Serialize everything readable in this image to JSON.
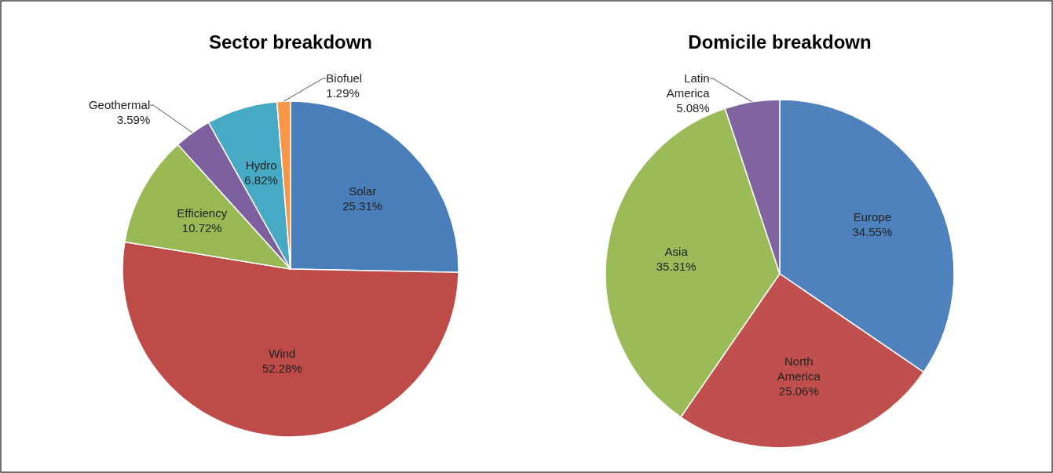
{
  "chart_data": [
    {
      "type": "pie",
      "title": "Sector breakdown",
      "categories": [
        "Solar",
        "Wind",
        "Efficiency",
        "Geothermal",
        "Hydro",
        "Biofuel"
      ],
      "values": [
        25.31,
        52.28,
        10.72,
        3.59,
        6.82,
        1.29
      ],
      "colors": [
        "#4a7ebb",
        "#be4b48",
        "#98b954",
        "#7d60a0",
        "#46aac5",
        "#f79646"
      ],
      "value_labels": [
        "25.31%",
        "52.28%",
        "10.72%",
        "3.59%",
        "6.82%",
        "1.29%"
      ]
    },
    {
      "type": "pie",
      "title": "Domicile breakdown",
      "categories": [
        "Europe",
        "North America",
        "Asia",
        "Latin America"
      ],
      "values": [
        34.55,
        25.06,
        35.31,
        5.08
      ],
      "colors": [
        "#4f81bd",
        "#c0504d",
        "#9bbb59",
        "#8064a2"
      ],
      "value_labels": [
        "34.55%",
        "25.06%",
        "35.31%",
        "5.08%"
      ]
    }
  ]
}
